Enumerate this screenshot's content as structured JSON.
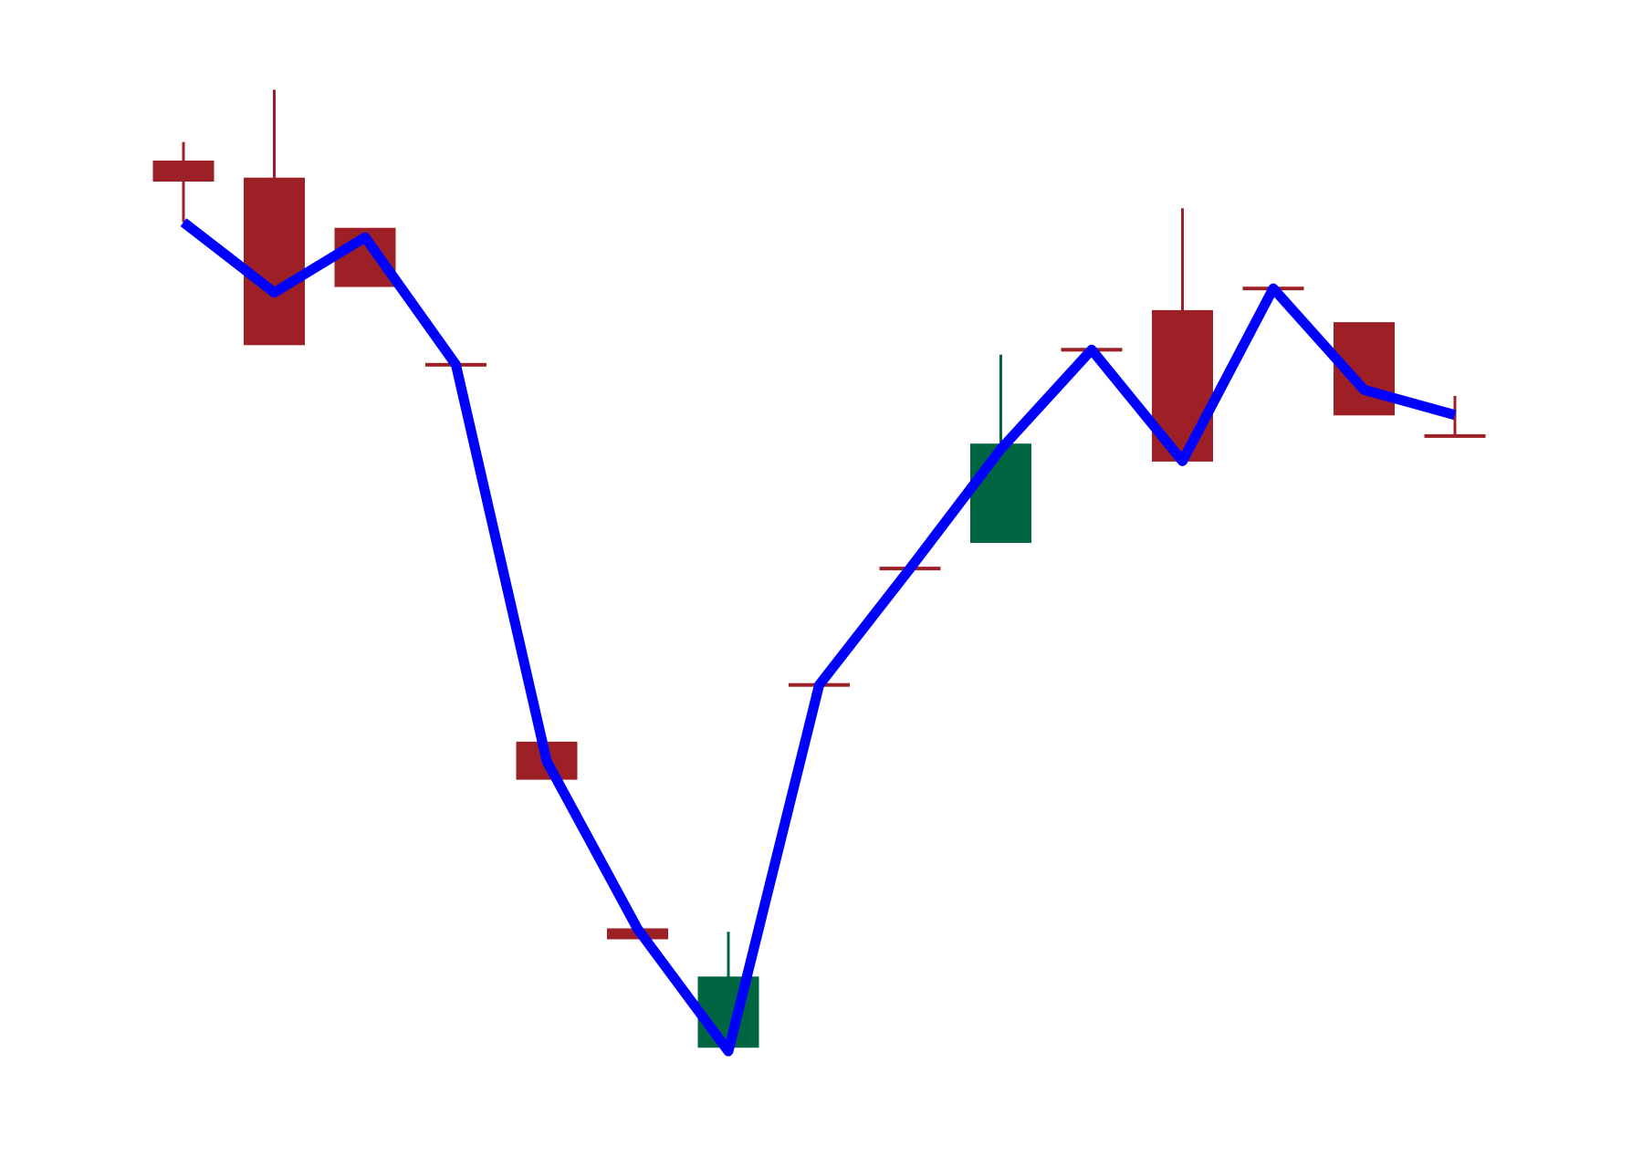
{
  "chart_data": {
    "type": "candlestick",
    "title": "",
    "xlabel": "",
    "ylabel": "",
    "axes_visible": false,
    "grid": false,
    "legend": "none",
    "ylim": [
      0,
      100
    ],
    "colors": {
      "up": "#006641",
      "down": "#9d2027",
      "line": "#0000ff",
      "background": "#ffffff"
    },
    "candles": [
      {
        "index": 1,
        "open": 91.5,
        "high": 93.4,
        "low": 85.4,
        "close": 89.5
      },
      {
        "index": 2,
        "open": 89.8,
        "high": 98.6,
        "low": 73.2,
        "close": 73.2
      },
      {
        "index": 3,
        "open": 84.8,
        "high": 84.8,
        "low": 79.0,
        "close": 79.0
      },
      {
        "index": 4,
        "open": 71.2,
        "high": 71.2,
        "low": 71.2,
        "close": 71.2
      },
      {
        "index": 5,
        "open": 33.6,
        "high": 33.6,
        "low": 29.9,
        "close": 29.9
      },
      {
        "index": 6,
        "open": 15.0,
        "high": 15.0,
        "low": 14.0,
        "close": 14.0
      },
      {
        "index": 7,
        "open": 3.2,
        "high": 14.7,
        "low": 3.2,
        "close": 10.2
      },
      {
        "index": 8,
        "open": 39.3,
        "high": 39.3,
        "low": 39.3,
        "close": 39.3
      },
      {
        "index": 9,
        "open": 50.9,
        "high": 50.9,
        "low": 50.9,
        "close": 50.9
      },
      {
        "index": 10,
        "open": 53.5,
        "high": 72.2,
        "low": 53.5,
        "close": 63.3
      },
      {
        "index": 11,
        "open": 72.7,
        "high": 72.7,
        "low": 72.7,
        "close": 72.7
      },
      {
        "index": 12,
        "open": 76.6,
        "high": 86.8,
        "low": 61.6,
        "close": 61.6
      },
      {
        "index": 13,
        "open": 78.8,
        "high": 78.8,
        "low": 78.8,
        "close": 78.8
      },
      {
        "index": 14,
        "open": 75.4,
        "high": 75.4,
        "low": 66.2,
        "close": 66.2
      },
      {
        "index": 15,
        "open": 64.1,
        "high": 68.1,
        "low": 64.1,
        "close": 64.1
      }
    ],
    "line_series": {
      "x": [
        1,
        2,
        3,
        4,
        5,
        6,
        7,
        8,
        9,
        10,
        11,
        12,
        13,
        14,
        15
      ],
      "y": [
        85.4,
        78.4,
        83.9,
        71.2,
        31.7,
        15.0,
        2.8,
        39.3,
        50.9,
        62.8,
        72.7,
        61.6,
        78.8,
        68.7,
        66.2
      ]
    }
  }
}
